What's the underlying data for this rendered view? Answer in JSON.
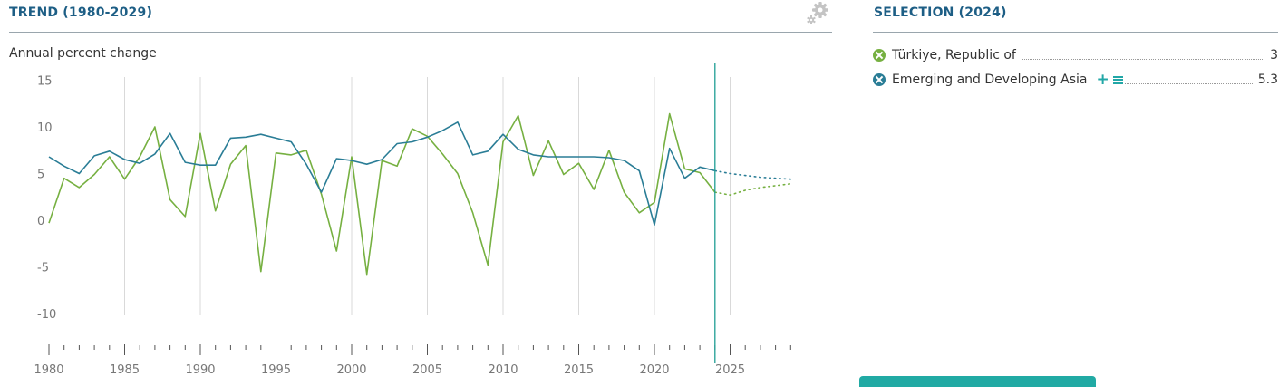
{
  "trend_panel": {
    "title": "TREND (1980-2029)"
  },
  "selection_panel": {
    "title": "SELECTION (2024)",
    "items": [
      {
        "name": "Türkiye, Republic of",
        "value": "3",
        "color": "#76b041",
        "icon": "remove-x-icon"
      },
      {
        "name": "Emerging and Developing Asia",
        "value": "5.3",
        "color": "#2a7d96",
        "icon": "remove-x-icon",
        "actions": [
          "plus-icon",
          "list-icon"
        ]
      }
    ]
  },
  "chart_data": {
    "type": "line",
    "ylabel": "Annual percent change",
    "ylim": [
      -13,
      15
    ],
    "yticks": [
      15,
      10,
      5,
      0,
      -5,
      -10
    ],
    "xlim": [
      1980,
      2029
    ],
    "xticks": [
      1980,
      1985,
      1990,
      1995,
      2000,
      2005,
      2010,
      2015,
      2020,
      2025
    ],
    "grid": "vertical lines every 5 years",
    "selected_year": 2024,
    "forecast_start": 2024,
    "x": [
      1980,
      1981,
      1982,
      1983,
      1984,
      1985,
      1986,
      1987,
      1988,
      1989,
      1990,
      1991,
      1992,
      1993,
      1994,
      1995,
      1996,
      1997,
      1998,
      1999,
      2000,
      2001,
      2002,
      2003,
      2004,
      2005,
      2006,
      2007,
      2008,
      2009,
      2010,
      2011,
      2012,
      2013,
      2014,
      2015,
      2016,
      2017,
      2018,
      2019,
      2020,
      2021,
      2022,
      2023,
      2024,
      2025,
      2026,
      2027,
      2028,
      2029
    ],
    "series": [
      {
        "name": "Türkiye, Republic of",
        "color": "#76b041",
        "values": [
          -0.3,
          4.5,
          3.5,
          4.9,
          6.8,
          4.4,
          6.8,
          10.0,
          2.2,
          0.4,
          9.3,
          1.0,
          6.0,
          8.0,
          -5.5,
          7.2,
          7.0,
          7.5,
          2.8,
          -3.3,
          6.8,
          -5.8,
          6.4,
          5.8,
          9.8,
          9.0,
          7.1,
          5.0,
          0.8,
          -4.8,
          8.4,
          11.2,
          4.8,
          8.5,
          4.9,
          6.1,
          3.3,
          7.5,
          3.0,
          0.8,
          1.9,
          11.4,
          5.5,
          5.1,
          3.0,
          2.7,
          3.2,
          3.5,
          3.7,
          3.9
        ]
      },
      {
        "name": "Emerging and Developing Asia",
        "color": "#2a7d96",
        "values": [
          6.8,
          5.8,
          5.0,
          6.9,
          7.4,
          6.5,
          6.1,
          7.1,
          9.3,
          6.2,
          5.9,
          5.9,
          8.8,
          8.9,
          9.2,
          8.8,
          8.4,
          6.0,
          3.0,
          6.6,
          6.4,
          6.0,
          6.5,
          8.2,
          8.4,
          8.9,
          9.6,
          10.5,
          7.0,
          7.4,
          9.2,
          7.6,
          7.0,
          6.8,
          6.8,
          6.8,
          6.8,
          6.7,
          6.4,
          5.3,
          -0.5,
          7.7,
          4.5,
          5.7,
          5.3,
          5.0,
          4.8,
          4.6,
          4.5,
          4.4
        ]
      }
    ]
  }
}
